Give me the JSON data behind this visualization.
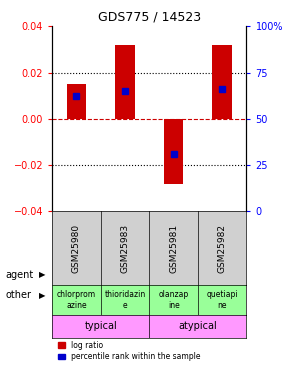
{
  "title": "GDS775 / 14523",
  "samples": [
    "GSM25980",
    "GSM25983",
    "GSM25981",
    "GSM25982"
  ],
  "log_ratios": [
    0.015,
    0.032,
    -0.028,
    0.032
  ],
  "percentile_values": [
    0.01,
    0.012,
    -0.015,
    0.013
  ],
  "ylim": [
    -0.04,
    0.04
  ],
  "yticks_left": [
    -0.04,
    -0.02,
    0,
    0.02,
    0.04
  ],
  "yticks_right": [
    0,
    25,
    50,
    75,
    100
  ],
  "bar_color": "#cc0000",
  "marker_color": "#0000cc",
  "zero_line_color": "#cc0000",
  "dotted_color": "#000000",
  "agents": [
    "chlorprom\nazine",
    "thioridazin\ne",
    "olanzap\nine",
    "quetiapi\nne"
  ],
  "agent_color": "#99ff99",
  "other_groups": [
    [
      "typical",
      2
    ],
    [
      "atypical",
      2
    ]
  ],
  "other_color": "#ff99ff",
  "label_agent": "agent",
  "label_other": "other",
  "legend_red": "log ratio",
  "legend_blue": "percentile rank within the sample",
  "bar_width": 0.4,
  "plot_bg": "#ffffff",
  "sample_bg": "#d0d0d0"
}
